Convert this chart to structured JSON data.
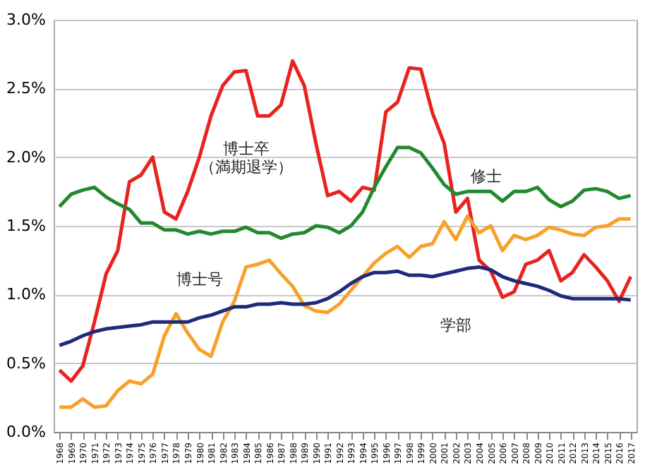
{
  "chart_data": {
    "type": "line",
    "categories": [
      "1968",
      "1969",
      "1970",
      "1971",
      "1972",
      "1973",
      "1974",
      "1975",
      "1976",
      "1977",
      "1978",
      "1979",
      "1980",
      "1981",
      "1982",
      "1983",
      "1984",
      "1985",
      "1986",
      "1987",
      "1988",
      "1989",
      "1990",
      "1991",
      "1992",
      "1993",
      "1994",
      "1995",
      "1996",
      "1997",
      "1998",
      "1999",
      "2000",
      "2001",
      "2002",
      "2003",
      "2004",
      "2005",
      "2006",
      "2007",
      "2008",
      "2009",
      "2010",
      "2011",
      "2012",
      "2013",
      "2014",
      "2015",
      "2016",
      "2017"
    ],
    "series": [
      {
        "name": "博士卒（満期退学）",
        "color": "#e8231f",
        "values": [
          0.45,
          0.37,
          0.48,
          0.8,
          1.15,
          1.32,
          1.82,
          1.87,
          2.0,
          1.6,
          1.55,
          1.75,
          2.0,
          2.3,
          2.52,
          2.62,
          2.63,
          2.3,
          2.3,
          2.38,
          2.7,
          2.52,
          2.1,
          1.72,
          1.75,
          1.68,
          1.78,
          1.76,
          2.33,
          2.4,
          2.65,
          2.64,
          2.32,
          2.1,
          1.6,
          1.7,
          1.25,
          1.17,
          0.98,
          1.02,
          1.22,
          1.25,
          1.32,
          1.1,
          1.16,
          1.29,
          1.2,
          1.1,
          0.95,
          1.13
        ]
      },
      {
        "name": "修士",
        "color": "#23892e",
        "values": [
          1.64,
          1.73,
          1.76,
          1.78,
          1.71,
          1.66,
          1.62,
          1.52,
          1.52,
          1.47,
          1.47,
          1.44,
          1.46,
          1.44,
          1.46,
          1.46,
          1.49,
          1.45,
          1.45,
          1.41,
          1.44,
          1.45,
          1.5,
          1.49,
          1.45,
          1.5,
          1.6,
          1.78,
          1.93,
          2.07,
          2.07,
          2.03,
          1.92,
          1.8,
          1.73,
          1.75,
          1.75,
          1.75,
          1.68,
          1.75,
          1.75,
          1.78,
          1.69,
          1.64,
          1.68,
          1.76,
          1.77,
          1.75,
          1.7,
          1.72
        ]
      },
      {
        "name": "博士号",
        "color": "#f7a12a",
        "values": [
          0.18,
          0.18,
          0.24,
          0.18,
          0.19,
          0.3,
          0.37,
          0.35,
          0.42,
          0.7,
          0.86,
          0.72,
          0.6,
          0.55,
          0.8,
          0.95,
          1.2,
          1.22,
          1.25,
          1.15,
          1.06,
          0.92,
          0.88,
          0.87,
          0.93,
          1.03,
          1.13,
          1.23,
          1.3,
          1.35,
          1.27,
          1.35,
          1.37,
          1.53,
          1.4,
          1.57,
          1.45,
          1.5,
          1.32,
          1.43,
          1.4,
          1.43,
          1.49,
          1.47,
          1.44,
          1.43,
          1.49,
          1.5,
          1.55,
          1.55
        ]
      },
      {
        "name": "学部",
        "color": "#1f2a7a",
        "values": [
          0.63,
          0.66,
          0.7,
          0.73,
          0.75,
          0.76,
          0.77,
          0.78,
          0.8,
          0.8,
          0.8,
          0.8,
          0.83,
          0.85,
          0.88,
          0.91,
          0.91,
          0.93,
          0.93,
          0.94,
          0.93,
          0.93,
          0.94,
          0.97,
          1.02,
          1.08,
          1.13,
          1.16,
          1.16,
          1.17,
          1.14,
          1.14,
          1.13,
          1.15,
          1.17,
          1.19,
          1.2,
          1.18,
          1.13,
          1.1,
          1.08,
          1.06,
          1.03,
          0.99,
          0.97,
          0.97,
          0.97,
          0.97,
          0.97,
          0.96
        ]
      }
    ],
    "ylim": [
      0,
      3.0
    ],
    "yticks": [
      {
        "value": 0,
        "label": "0.0%"
      },
      {
        "value": 0.5,
        "label": "0.5%"
      },
      {
        "value": 1.0,
        "label": "1.0%"
      },
      {
        "value": 1.5,
        "label": "1.5%"
      },
      {
        "value": 2.0,
        "label": "2.0%"
      },
      {
        "value": 2.5,
        "label": "2.5%"
      },
      {
        "value": 3.0,
        "label": "3.0%"
      }
    ],
    "grid": "y",
    "legend": false,
    "marker": "none",
    "line_style": "solid"
  }
}
